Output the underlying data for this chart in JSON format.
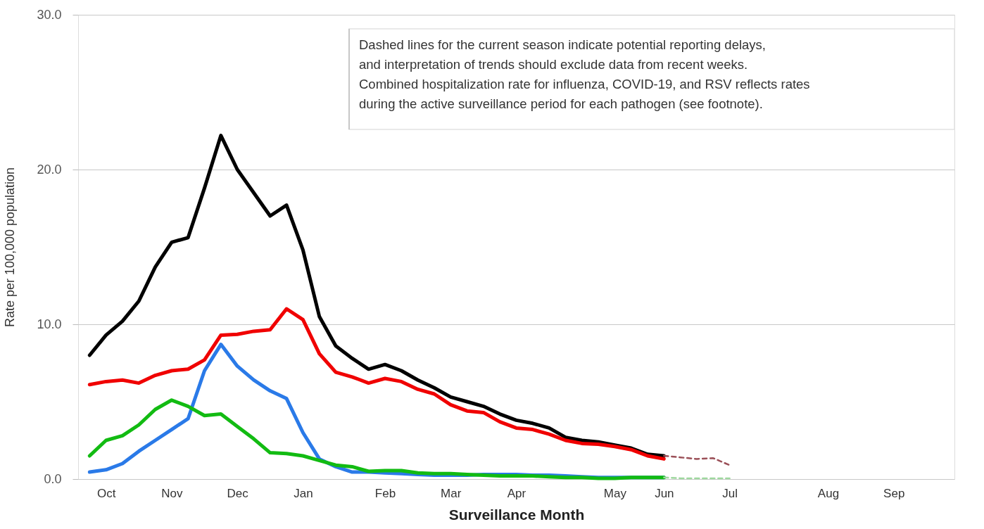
{
  "chart_data": {
    "type": "line",
    "xlabel": "Surveillance Month",
    "ylabel": "Rate per 100,000 population",
    "categories": [
      null,
      "Oct",
      null,
      null,
      null,
      "Nov",
      null,
      null,
      null,
      "Dec",
      null,
      null,
      null,
      "Jan",
      null,
      null,
      null,
      null,
      "Feb",
      null,
      null,
      null,
      "Mar",
      null,
      null,
      null,
      "Apr",
      null,
      null,
      null,
      null,
      null,
      "May",
      null,
      null,
      "Jun",
      null,
      null,
      null,
      "Jul",
      null,
      null,
      null,
      null,
      null,
      "Aug",
      null,
      null,
      null,
      "Sep",
      null,
      null,
      null
    ],
    "series": [
      {
        "color": "#000000",
        "values": [
          8.0,
          9.3,
          10.2,
          11.5,
          13.7,
          15.3,
          15.6,
          18.8,
          22.2,
          20.0,
          18.5,
          17.0,
          17.7,
          14.8,
          10.5,
          8.6,
          7.8,
          7.1,
          7.4,
          7.0,
          6.4,
          5.9,
          5.3,
          5.0,
          4.7,
          4.2,
          3.8,
          3.6,
          3.3,
          2.7,
          2.5,
          2.4,
          2.2,
          2.0,
          1.6,
          1.5,
          null,
          null,
          null,
          null,
          null,
          null,
          null,
          null,
          null,
          null,
          null,
          null,
          null,
          null,
          null,
          null,
          null
        ]
      },
      {
        "color": "#f00000",
        "values": [
          6.1,
          6.3,
          6.4,
          6.2,
          6.7,
          7.0,
          7.1,
          7.7,
          9.3,
          9.35,
          9.55,
          9.65,
          11.0,
          10.3,
          8.1,
          6.9,
          6.6,
          6.2,
          6.5,
          6.3,
          5.8,
          5.5,
          4.8,
          4.4,
          4.3,
          3.7,
          3.3,
          3.2,
          2.9,
          2.5,
          2.3,
          2.25,
          2.1,
          1.9,
          1.5,
          1.3,
          null,
          null,
          null,
          null,
          null,
          null,
          null,
          null,
          null,
          null,
          null,
          null,
          null,
          null,
          null,
          null,
          null
        ]
      },
      {
        "color": "#2a7ae8",
        "values": [
          0.45,
          0.6,
          1.0,
          1.8,
          2.5,
          3.2,
          3.9,
          7.0,
          8.7,
          7.3,
          6.4,
          5.7,
          5.2,
          3.0,
          1.3,
          0.8,
          0.45,
          0.45,
          0.4,
          0.35,
          0.3,
          0.25,
          0.25,
          0.25,
          0.3,
          0.3,
          0.3,
          0.25,
          0.25,
          0.2,
          0.15,
          0.1,
          0.1,
          0.1,
          0.1,
          0.1,
          null,
          null,
          null,
          null,
          null,
          null,
          null,
          null,
          null,
          null,
          null,
          null,
          null,
          null,
          null,
          null,
          null
        ]
      },
      {
        "color": "#12bb12",
        "values": [
          1.5,
          2.5,
          2.8,
          3.5,
          4.5,
          5.1,
          4.7,
          4.1,
          4.2,
          3.4,
          2.6,
          1.7,
          1.65,
          1.5,
          1.2,
          0.9,
          0.8,
          0.5,
          0.55,
          0.55,
          0.4,
          0.35,
          0.35,
          0.3,
          0.25,
          0.2,
          0.2,
          0.2,
          0.15,
          0.1,
          0.1,
          0.05,
          0.05,
          0.1,
          0.1,
          0.1,
          null,
          null,
          null,
          null,
          null,
          null,
          null,
          null,
          null,
          null,
          null,
          null,
          null,
          null,
          null,
          null,
          null
        ]
      },
      {
        "color": "#9b5058",
        "line_style": "dashed",
        "values": [
          null,
          null,
          null,
          null,
          null,
          null,
          null,
          null,
          null,
          null,
          null,
          null,
          null,
          null,
          null,
          null,
          null,
          null,
          null,
          null,
          null,
          null,
          null,
          null,
          null,
          null,
          null,
          null,
          null,
          null,
          null,
          null,
          null,
          null,
          null,
          1.5,
          1.4,
          1.3,
          1.35,
          0.9,
          null,
          null,
          null,
          null,
          null,
          null,
          null,
          null,
          null,
          null,
          null,
          null,
          null
        ]
      },
      {
        "color": "#9fd89f",
        "line_style": "dashed",
        "values": [
          null,
          null,
          null,
          null,
          null,
          null,
          null,
          null,
          null,
          null,
          null,
          null,
          null,
          null,
          null,
          null,
          null,
          null,
          null,
          null,
          null,
          null,
          null,
          null,
          null,
          null,
          null,
          null,
          null,
          null,
          null,
          null,
          null,
          null,
          null,
          0.1,
          0.05,
          0.05,
          0.05,
          0.05,
          null,
          null,
          null,
          null,
          null,
          null,
          null,
          null,
          null,
          null,
          null,
          null,
          null
        ]
      }
    ],
    "ylim": [
      0,
      30
    ],
    "yticks": [
      {
        "value": 0,
        "label": "0.0"
      },
      {
        "value": 10,
        "label": "10.0"
      },
      {
        "value": 20,
        "label": "20.0"
      },
      {
        "value": 30,
        "label": "30.0"
      }
    ],
    "grid": "y",
    "legend": false,
    "marker": "none",
    "line_style": "solid",
    "annotations": [
      "Dashed lines for the current season indicate potential reporting delays,\nand interpretation of trends should exclude data from recent weeks.\nCombined hospitalization rate for influenza, COVID-19, and RSV reflects rates\nduring the active surveillance period for each pathogen (see footnote)."
    ]
  }
}
